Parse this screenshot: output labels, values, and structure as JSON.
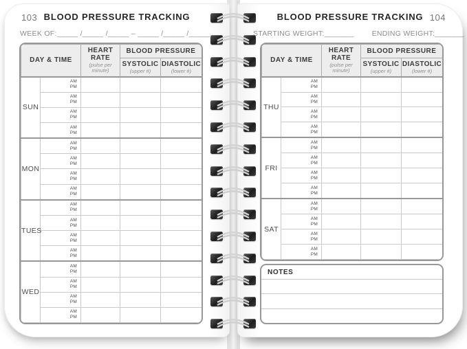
{
  "book": {
    "left_page": {
      "page_number": "103",
      "title": "BLOOD PRESSURE TRACKING",
      "week_of": "WEEK OF:_____ /_____ /_____  –  _____ /_____ /_____",
      "days": [
        "SUN",
        "MON",
        "TUES",
        "WED"
      ]
    },
    "right_page": {
      "page_number": "104",
      "title": "BLOOD PRESSURE TRACKING",
      "starting_weight": "STARTING WEIGHT:_______",
      "ending_weight": "ENDING WEIGHT:_______",
      "days": [
        "THU",
        "FRI",
        "SAT"
      ],
      "notes": {
        "label": "NOTES",
        "lines": 3
      }
    },
    "table": {
      "rows_per_day": 4,
      "headers": {
        "day_time": "DAY & TIME",
        "heart_rate": "HEART RATE",
        "heart_rate_sub": "(pulse per minute)",
        "blood_pressure": "BLOOD PRESSURE",
        "systolic": "SYSTOLIC",
        "systolic_sub": "(upper #)",
        "diastolic": "DIASTOLIC",
        "diastolic_sub": "(lower #)"
      },
      "time_labels": {
        "am": "AM",
        "pm": "PM"
      }
    },
    "colors": {
      "header_bg": "#ededed",
      "border_strong": "#979797",
      "border_light": "#c9c9c9",
      "title_text": "#262626",
      "muted_text": "#8c8c8c"
    }
  }
}
